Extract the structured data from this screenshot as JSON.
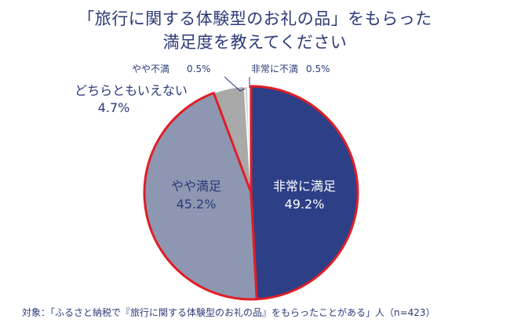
{
  "header": {
    "title_line1": "「旅行に関する体験型のお礼の品」をもらった",
    "title_line2": "満足度を教えてください"
  },
  "footnote": "対象：「ふるさと納税で『旅行に関する体験型のお礼の品』をもらったことがある」人（n=423）",
  "chart_data": {
    "type": "pie",
    "title": "「旅行に関する体験型のお礼の品」をもらった満足度を教えてください",
    "slices": [
      {
        "label": "非常に満足",
        "value": 49.2,
        "value_label": "49.2%",
        "color": "#2c3f87",
        "highlight": true
      },
      {
        "label": "やや満足",
        "value": 45.2,
        "value_label": "45.2%",
        "color": "#8d97b2",
        "highlight": true
      },
      {
        "label": "どちらともいえない",
        "value": 4.7,
        "value_label": "4.7%",
        "color": "#a9a9a9",
        "highlight": false
      },
      {
        "label": "やや不満",
        "value": 0.5,
        "value_label": "0.5%",
        "color": "#d3d3d3",
        "highlight": false
      },
      {
        "label": "非常に不満",
        "value": 0.5,
        "value_label": "0.5%",
        "color": "#efefef",
        "highlight": false
      }
    ],
    "highlight_color": "#e01e26",
    "label_color": "#2c3a78"
  }
}
